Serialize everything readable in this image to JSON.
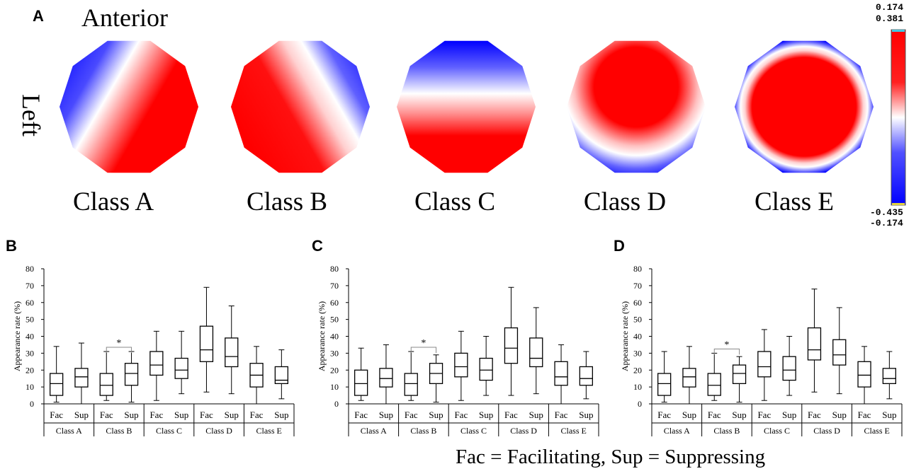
{
  "panel_a": {
    "letter": "A",
    "anterior_label": "Anterior",
    "left_label": "Left",
    "maps": [
      {
        "label": "Class A",
        "pattern": "diag-blue-left"
      },
      {
        "label": "Class B",
        "pattern": "diag-red-left"
      },
      {
        "label": "Class C",
        "pattern": "horiz-blue-top"
      },
      {
        "label": "Class D",
        "pattern": "radial-red-top"
      },
      {
        "label": "Class E",
        "pattern": "radial-red-center"
      }
    ],
    "colorbar": {
      "top_values": [
        "0.174",
        "0.381"
      ],
      "bottom_values": [
        "-0.435",
        "-0.174"
      ],
      "colors": {
        "max": "#ff0000",
        "mid": "#ffffff",
        "min": "#0000ff"
      }
    }
  },
  "legend_text": "Fac = Facilitating,  Sup = Suppressing",
  "chart_data": [
    {
      "type": "box",
      "panel": "B",
      "ylabel": "Appearance rate (%)",
      "ylim": [
        0,
        80
      ],
      "yticks": [
        "0",
        "10",
        "20",
        "30",
        "40",
        "50",
        "60",
        "70",
        "80"
      ],
      "conditions": [
        "Fac",
        "Sup"
      ],
      "classes": [
        "Class A",
        "Class B",
        "Class C",
        "Class D",
        "Class E"
      ],
      "significance": {
        "class": "Class B",
        "label": "*"
      },
      "boxes": [
        {
          "min": 1,
          "q1": 5,
          "median": 12,
          "q3": 18,
          "max": 34
        },
        {
          "min": 0,
          "q1": 10,
          "median": 16,
          "q3": 21,
          "max": 36
        },
        {
          "min": 2,
          "q1": 5,
          "median": 11,
          "q3": 18,
          "max": 31
        },
        {
          "min": 1,
          "q1": 11,
          "median": 18,
          "q3": 24,
          "max": 31
        },
        {
          "min": 2,
          "q1": 17,
          "median": 23,
          "q3": 31,
          "max": 43
        },
        {
          "min": 6,
          "q1": 15,
          "median": 20,
          "q3": 27,
          "max": 43
        },
        {
          "min": 7,
          "q1": 25,
          "median": 32,
          "q3": 46,
          "max": 69
        },
        {
          "min": 6,
          "q1": 22,
          "median": 28,
          "q3": 39,
          "max": 58
        },
        {
          "min": 0,
          "q1": 10,
          "median": 17,
          "q3": 24,
          "max": 34
        },
        {
          "min": 3,
          "q1": 12,
          "median": 14,
          "q3": 22,
          "max": 32
        }
      ]
    },
    {
      "type": "box",
      "panel": "C",
      "ylabel": "Appearance rate (%)",
      "ylim": [
        0,
        80
      ],
      "yticks": [
        "0",
        "10",
        "20",
        "30",
        "40",
        "50",
        "60",
        "70",
        "80"
      ],
      "conditions": [
        "Fac",
        "Sup"
      ],
      "classes": [
        "Class A",
        "Class B",
        "Class C",
        "Class D",
        "Class E"
      ],
      "significance": {
        "class": "Class B",
        "label": "*"
      },
      "boxes": [
        {
          "min": 2,
          "q1": 5,
          "median": 12,
          "q3": 20,
          "max": 33
        },
        {
          "min": 0,
          "q1": 10,
          "median": 15,
          "q3": 21,
          "max": 35
        },
        {
          "min": 2,
          "q1": 5,
          "median": 12,
          "q3": 18,
          "max": 31
        },
        {
          "min": 1,
          "q1": 12,
          "median": 18,
          "q3": 24,
          "max": 29
        },
        {
          "min": 2,
          "q1": 16,
          "median": 22,
          "q3": 30,
          "max": 43
        },
        {
          "min": 5,
          "q1": 14,
          "median": 20,
          "q3": 27,
          "max": 40
        },
        {
          "min": 5,
          "q1": 24,
          "median": 33,
          "q3": 45,
          "max": 69
        },
        {
          "min": 6,
          "q1": 22,
          "median": 27,
          "q3": 39,
          "max": 57
        },
        {
          "min": 0,
          "q1": 11,
          "median": 16,
          "q3": 25,
          "max": 35
        },
        {
          "min": 3,
          "q1": 11,
          "median": 15,
          "q3": 22,
          "max": 31
        }
      ]
    },
    {
      "type": "box",
      "panel": "D",
      "ylabel": "Appearance rate (%)",
      "ylim": [
        0,
        80
      ],
      "yticks": [
        "0",
        "10",
        "20",
        "30",
        "40",
        "50",
        "60",
        "70",
        "80"
      ],
      "conditions": [
        "Fac",
        "Sup"
      ],
      "classes": [
        "Class A",
        "Class B",
        "Class C",
        "Class D",
        "Class E"
      ],
      "significance": {
        "class": "Class B",
        "label": "*"
      },
      "boxes": [
        {
          "min": 1,
          "q1": 5,
          "median": 12,
          "q3": 18,
          "max": 31
        },
        {
          "min": 0,
          "q1": 10,
          "median": 16,
          "q3": 21,
          "max": 34
        },
        {
          "min": 2,
          "q1": 5,
          "median": 11,
          "q3": 18,
          "max": 30
        },
        {
          "min": 1,
          "q1": 12,
          "median": 18,
          "q3": 23,
          "max": 28
        },
        {
          "min": 2,
          "q1": 16,
          "median": 22,
          "q3": 31,
          "max": 44
        },
        {
          "min": 5,
          "q1": 14,
          "median": 20,
          "q3": 28,
          "max": 40
        },
        {
          "min": 7,
          "q1": 26,
          "median": 32,
          "q3": 45,
          "max": 68
        },
        {
          "min": 6,
          "q1": 23,
          "median": 29,
          "q3": 38,
          "max": 57
        },
        {
          "min": 0,
          "q1": 10,
          "median": 17,
          "q3": 25,
          "max": 34
        },
        {
          "min": 3,
          "q1": 12,
          "median": 15,
          "q3": 21,
          "max": 31
        }
      ]
    }
  ]
}
